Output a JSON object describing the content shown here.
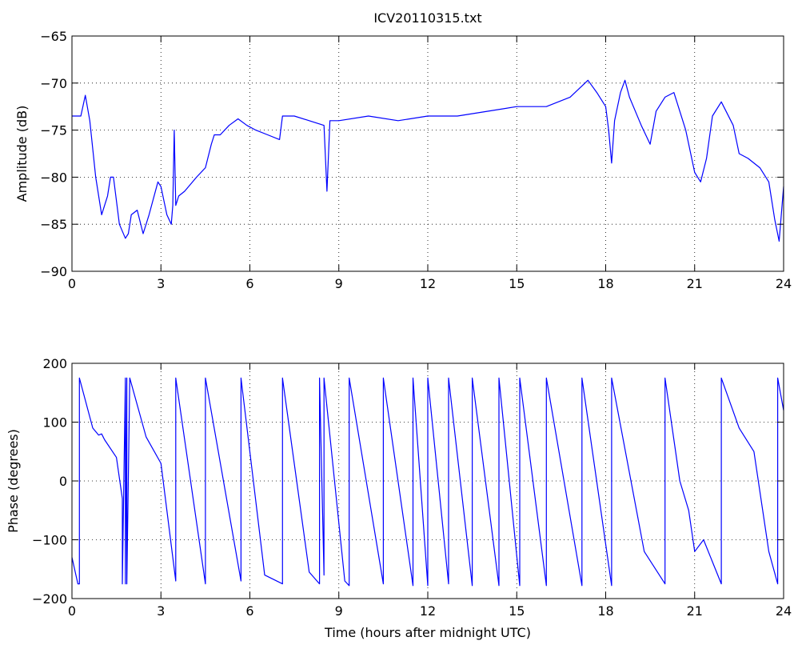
{
  "chart_data": [
    {
      "type": "line",
      "title": "ICV20110315.txt",
      "xlabel": "",
      "ylabel": "Amplitude (dB)",
      "xlim": [
        0,
        24
      ],
      "ylim": [
        -90,
        -65
      ],
      "xticks": [
        0,
        3,
        6,
        9,
        12,
        15,
        18,
        21,
        24
      ],
      "yticks": [
        -90,
        -85,
        -80,
        -75,
        -70,
        -65
      ],
      "grid": true,
      "line_color": "#0000ff",
      "series": [
        {
          "x": [
            0,
            0.3,
            0.45,
            0.6,
            0.8,
            1.0,
            1.2,
            1.3,
            1.4,
            1.6,
            1.8,
            1.9,
            2.0,
            2.2,
            2.4,
            2.6,
            2.9,
            3.0,
            3.2,
            3.35,
            3.4,
            3.45,
            3.5,
            3.6,
            3.8,
            4.2,
            4.5,
            4.7,
            4.8,
            5.0,
            5.3,
            5.6,
            5.9,
            6.2,
            6.6,
            7.0,
            7.1,
            7.5,
            8.0,
            8.5,
            8.6,
            8.7,
            9.0,
            10.0,
            11.0,
            12.0,
            13.0,
            14.0,
            15.0,
            16.0,
            16.8,
            17.4,
            17.7,
            18.0,
            18.1,
            18.2,
            18.3,
            18.5,
            18.65,
            18.8,
            19.2,
            19.5,
            19.7,
            20.0,
            20.3,
            20.7,
            21.0,
            21.2,
            21.4,
            21.6,
            21.9,
            22.3,
            22.5,
            22.8,
            23.2,
            23.5,
            23.7,
            23.85,
            24.0
          ],
          "y": [
            -73.5,
            -73.5,
            -71.3,
            -74,
            -80,
            -84,
            -82,
            -80,
            -80,
            -85,
            -86.5,
            -86,
            -84,
            -83.5,
            -86,
            -84,
            -80.5,
            -81,
            -84,
            -85,
            -83,
            -75,
            -83,
            -82,
            -81.5,
            -80,
            -79,
            -76.5,
            -75.5,
            -75.5,
            -74.5,
            -73.8,
            -74.5,
            -75,
            -75.5,
            -76,
            -73.5,
            -73.5,
            -74,
            -74.5,
            -81.5,
            -74,
            -74,
            -73.5,
            -74,
            -73.5,
            -73.5,
            -73,
            -72.5,
            -72.5,
            -71.5,
            -69.7,
            -71,
            -72.5,
            -75,
            -78.5,
            -74,
            -71,
            -69.7,
            -71.5,
            -74.5,
            -76.5,
            -73,
            -71.5,
            -71,
            -75,
            -79.5,
            -80.5,
            -78,
            -73.5,
            -72,
            -74.5,
            -77.5,
            -78,
            -79,
            -80.5,
            -84.5,
            -86.8,
            -81
          ]
        }
      ]
    },
    {
      "type": "line",
      "title": "",
      "xlabel": "Time (hours after midnight UTC)",
      "ylabel": "Phase (degrees)",
      "xlim": [
        0,
        24
      ],
      "ylim": [
        -200,
        200
      ],
      "xticks": [
        0,
        3,
        6,
        9,
        12,
        15,
        18,
        21,
        24
      ],
      "yticks": [
        -200,
        -100,
        0,
        100,
        200
      ],
      "grid": true,
      "line_color": "#0000ff",
      "series": [
        {
          "x": [
            0,
            0.2,
            0.25,
            0.25,
            0.7,
            0.9,
            1.0,
            1.1,
            1.5,
            1.7,
            1.7,
            1.8,
            1.8,
            1.85,
            1.85,
            1.95,
            1.95,
            2.5,
            3.0,
            3.5,
            3.5,
            4.5,
            4.5,
            5.7,
            5.7,
            6.5,
            7.1,
            7.1,
            8.0,
            8.35,
            8.35,
            8.5,
            8.5,
            9.2,
            9.35,
            9.35,
            10.5,
            10.5,
            11.5,
            11.5,
            12.0,
            12.0,
            12.7,
            12.7,
            13.5,
            13.5,
            14.4,
            14.4,
            15.1,
            15.1,
            16.0,
            16.0,
            17.2,
            17.2,
            18.2,
            18.2,
            19.3,
            20.0,
            20.0,
            20.5,
            20.8,
            21.0,
            21.3,
            21.9,
            21.9,
            22.5,
            23.0,
            23.5,
            23.8,
            23.8,
            24.0
          ],
          "y": [
            -130,
            -175,
            -175,
            175,
            90,
            78,
            80,
            70,
            40,
            -30,
            -175,
            175,
            -175,
            175,
            -175,
            175,
            175,
            75,
            30,
            -170,
            175,
            -175,
            175,
            -170,
            175,
            -160,
            -175,
            175,
            -155,
            -175,
            175,
            -160,
            175,
            -170,
            -178,
            175,
            -175,
            175,
            -178,
            175,
            -178,
            175,
            -175,
            175,
            -178,
            175,
            -178,
            175,
            -178,
            175,
            -178,
            175,
            -178,
            175,
            -178,
            175,
            -120,
            -175,
            175,
            0,
            -50,
            -120,
            -100,
            -175,
            175,
            90,
            50,
            -120,
            -175,
            175,
            120
          ]
        }
      ]
    }
  ]
}
